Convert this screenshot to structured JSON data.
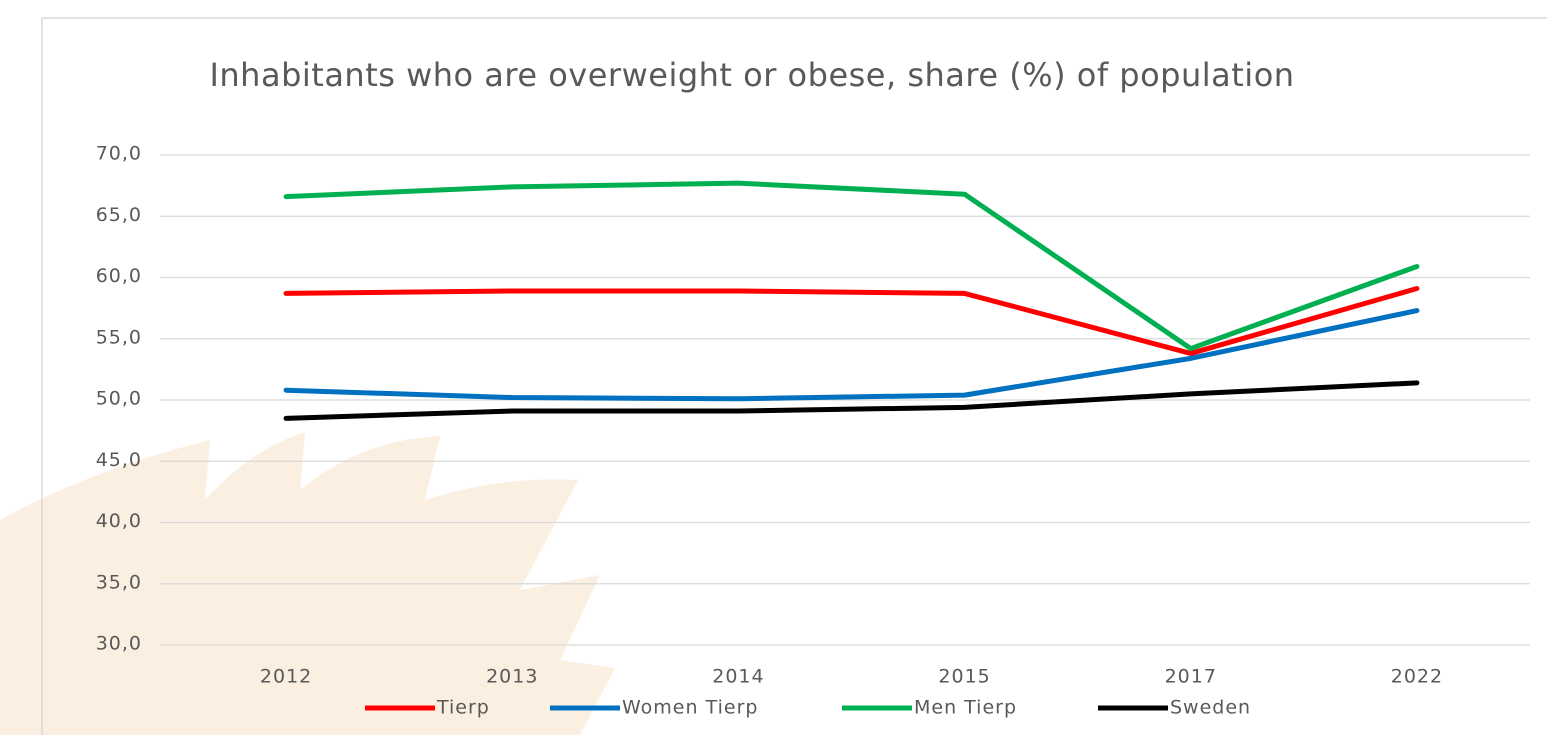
{
  "chart_data": {
    "type": "line",
    "title": "Inhabitants who are overweight or obese, share (%) of population",
    "categories": [
      "2012",
      "2013",
      "2014",
      "2015",
      "2017",
      "2022"
    ],
    "series": [
      {
        "name": "Tierp",
        "color": "#ff0000",
        "values": [
          58.7,
          58.9,
          58.9,
          58.7,
          53.8,
          59.1
        ]
      },
      {
        "name": "Women Tierp",
        "color": "#0070c0",
        "values": [
          50.8,
          50.2,
          50.1,
          50.4,
          53.4,
          57.3
        ]
      },
      {
        "name": "Men Tierp",
        "color": "#00b050",
        "values": [
          66.6,
          67.4,
          67.7,
          66.8,
          54.2,
          60.9
        ]
      },
      {
        "name": "Sweden",
        "color": "#000000",
        "values": [
          48.5,
          49.1,
          49.1,
          49.4,
          50.5,
          51.4
        ]
      }
    ],
    "ylim": [
      30,
      70
    ],
    "yticks": [
      {
        "value": 30,
        "label": "30,0"
      },
      {
        "value": 35,
        "label": "35,0"
      },
      {
        "value": 40,
        "label": "40,0"
      },
      {
        "value": 45,
        "label": "45,0"
      },
      {
        "value": 50,
        "label": "50,0"
      },
      {
        "value": 55,
        "label": "55,0"
      },
      {
        "value": 60,
        "label": "60,0"
      },
      {
        "value": 65,
        "label": "65,0"
      },
      {
        "value": 70,
        "label": "70,0"
      }
    ],
    "grid": true,
    "legend": "bottom"
  }
}
